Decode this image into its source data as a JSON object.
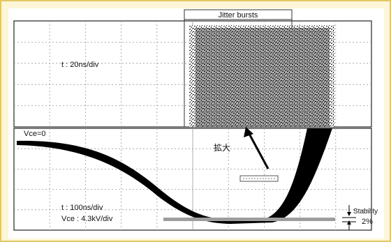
{
  "top_panel": {
    "tab_label": "Jitter bursts",
    "timebase_label": "t : 20ns/div"
  },
  "bottom_panel": {
    "zero_label": "Vce=0",
    "arrow_label": "拡大",
    "timebase_label": "t : 100ns/div",
    "volt_label": "Vce : 4.3kV/div",
    "stability_label": "Stability",
    "stability_value": "2%"
  },
  "colors": {
    "frame": "#e2c766",
    "background": "#fdf6d8",
    "trace": "#000000",
    "grid": "#9a9a9a"
  }
}
